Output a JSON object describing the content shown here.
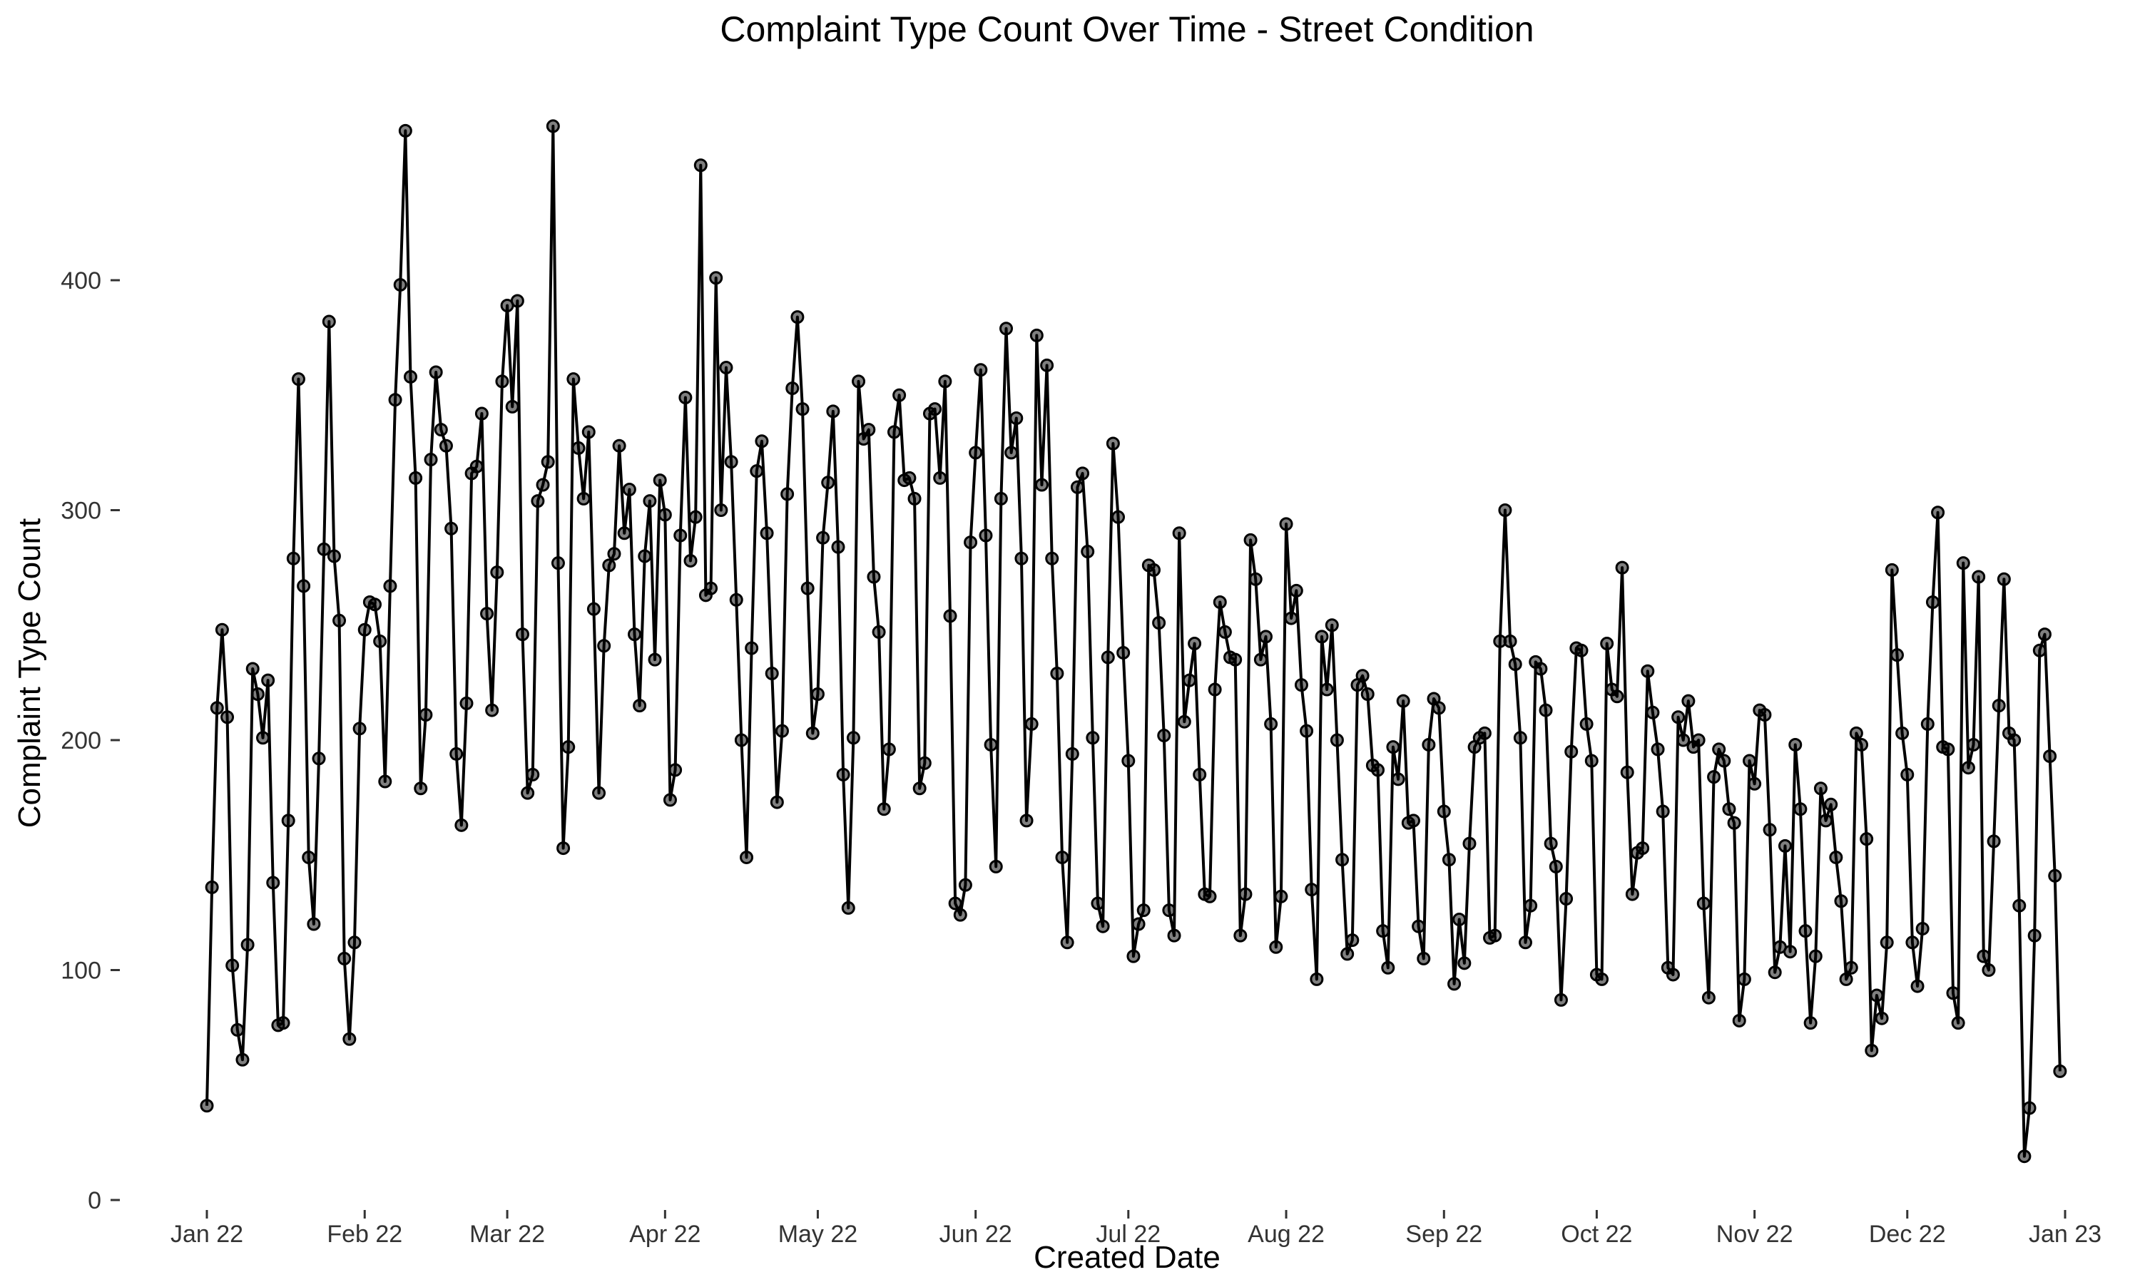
{
  "chart_data": {
    "type": "line",
    "title": "Complaint Type Count Over Time - Street Condition",
    "xlabel": "Created Date",
    "ylabel": "Complaint Type Count",
    "x_ticks": [
      "Jan 22",
      "Feb 22",
      "Mar 22",
      "Apr 22",
      "May 22",
      "Jun 22",
      "Jul 22",
      "Aug 22",
      "Sep 22",
      "Oct 22",
      "Nov 22",
      "Dec 22",
      "Jan 23"
    ],
    "y_ticks": [
      0,
      100,
      200,
      300,
      400
    ],
    "xlim": [
      "2022-01-01",
      "2023-01-01"
    ],
    "ylim": [
      0,
      470
    ],
    "grid": false,
    "series": [
      {
        "x_start": "2022-01-01",
        "x_step": "1 day",
        "values": [
          41,
          136,
          214,
          248,
          210,
          102,
          74,
          61,
          111,
          231,
          220,
          201,
          226,
          138,
          76,
          77,
          165,
          279,
          357,
          267,
          149,
          120,
          192,
          283,
          382,
          280,
          252,
          105,
          70,
          112,
          205,
          248,
          260,
          259,
          243,
          182,
          267,
          348,
          398,
          465,
          358,
          314,
          179,
          211,
          322,
          360,
          335,
          328,
          292,
          194,
          163,
          216,
          316,
          319,
          342,
          255,
          213,
          273,
          356,
          389,
          345,
          391,
          246,
          177,
          185,
          304,
          311,
          321,
          467,
          277,
          153,
          197,
          357,
          327,
          305,
          334,
          257,
          177,
          241,
          276,
          281,
          328,
          290,
          309,
          246,
          215,
          280,
          304,
          235,
          313,
          298,
          174,
          187,
          289,
          349,
          278,
          297,
          450,
          263,
          266,
          401,
          300,
          362,
          321,
          261,
          200,
          149,
          240,
          317,
          330,
          290,
          229,
          173,
          204,
          307,
          353,
          384,
          344,
          266,
          203,
          220,
          288,
          312,
          343,
          284,
          185,
          127,
          201,
          356,
          331,
          335,
          271,
          247,
          170,
          196,
          334,
          350,
          313,
          314,
          305,
          179,
          190,
          342,
          344,
          314,
          356,
          254,
          129,
          124,
          137,
          286,
          325,
          361,
          289,
          198,
          145,
          305,
          379,
          325,
          340,
          279,
          165,
          207,
          376,
          311,
          363,
          279,
          229,
          149,
          112,
          194,
          310,
          316,
          282,
          201,
          129,
          119,
          236,
          329,
          297,
          238,
          191,
          106,
          120,
          126,
          276,
          274,
          251,
          202,
          126,
          115,
          290,
          208,
          226,
          242,
          185,
          133,
          132,
          222,
          260,
          247,
          236,
          235,
          115,
          133,
          287,
          270,
          235,
          245,
          207,
          110,
          132,
          294,
          253,
          265,
          224,
          204,
          135,
          96,
          245,
          222,
          250,
          200,
          148,
          107,
          113,
          224,
          228,
          220,
          189,
          187,
          117,
          101,
          197,
          183,
          217,
          164,
          165,
          119,
          105,
          198,
          218,
          214,
          169,
          148,
          94,
          122,
          103,
          155,
          197,
          201,
          203,
          114,
          115,
          243,
          300,
          243,
          233,
          201,
          112,
          128,
          234,
          231,
          213,
          155,
          145,
          87,
          131,
          195,
          240,
          239,
          207,
          191,
          98,
          96,
          242,
          222,
          219,
          275,
          186,
          133,
          151,
          153,
          230,
          212,
          196,
          169,
          101,
          98,
          210,
          200,
          217,
          197,
          200,
          129,
          88,
          184,
          196,
          191,
          170,
          164,
          78,
          96,
          191,
          181,
          213,
          211,
          161,
          99,
          110,
          154,
          108,
          198,
          170,
          117,
          77,
          106,
          179,
          165,
          172,
          149,
          130,
          96,
          101,
          203,
          198,
          157,
          65,
          89,
          79,
          112,
          274,
          237,
          203,
          185,
          112,
          93,
          118,
          207,
          260,
          299,
          197,
          196,
          90,
          77,
          277,
          188,
          198,
          271,
          106,
          100,
          156,
          215,
          270,
          203,
          200,
          128,
          19,
          40,
          115,
          239,
          246,
          193,
          141,
          56
        ]
      }
    ]
  }
}
